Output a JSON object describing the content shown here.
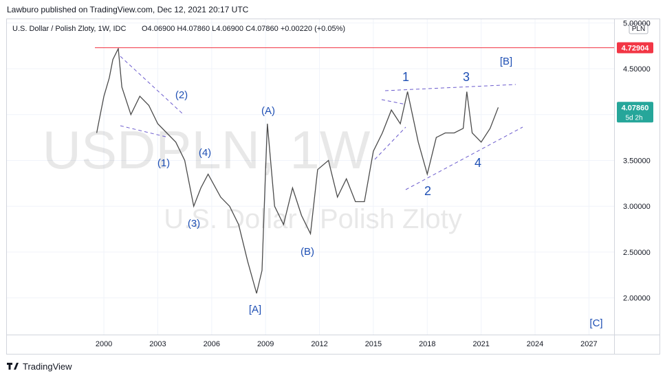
{
  "header": {
    "publisher": "Lawburo published on TradingView.com, Dec 12, 2021 20:17 UTC",
    "footer": "TradingView"
  },
  "chart_data": {
    "type": "line",
    "title": "U.S. Dollar / Polish Zloty, 1W, IDC",
    "ohlc": "O4.06900 H4.07860 L4.06900 C4.07860 +0.00220 (+0.05%)",
    "watermark": "USDPLN, 1W",
    "watermark_sub": "U.S. Dollar / Polish Zloty",
    "currency": "PLN",
    "x": [
      1999.6,
      1999.8,
      2000.0,
      2000.3,
      2000.5,
      2000.8,
      2001.0,
      2001.5,
      2002.0,
      2002.5,
      2003.0,
      2003.5,
      2004.0,
      2004.5,
      2005.0,
      2005.4,
      2005.8,
      2006.5,
      2007.0,
      2007.5,
      2008.0,
      2008.5,
      2008.8,
      2009.0,
      2009.1,
      2009.5,
      2010.0,
      2010.5,
      2011.0,
      2011.5,
      2011.9,
      2012.5,
      2013.0,
      2013.5,
      2014.0,
      2014.5,
      2015.0,
      2015.5,
      2016.0,
      2016.5,
      2016.9,
      2017.5,
      2018.0,
      2018.5,
      2019.0,
      2019.5,
      2020.0,
      2020.2,
      2020.5,
      2021.0,
      2021.5,
      2021.95
    ],
    "series": [
      {
        "name": "USDPLN",
        "color": "#4a4a4a",
        "values": [
          3.8,
          4.0,
          4.2,
          4.4,
          4.6,
          4.72,
          4.3,
          4.0,
          4.2,
          4.1,
          3.9,
          3.8,
          3.7,
          3.5,
          3.0,
          3.2,
          3.35,
          3.1,
          3.0,
          2.8,
          2.4,
          2.05,
          2.3,
          3.4,
          3.9,
          3.0,
          2.8,
          3.2,
          2.9,
          2.7,
          3.4,
          3.5,
          3.1,
          3.3,
          3.05,
          3.05,
          3.6,
          3.8,
          4.05,
          3.9,
          4.25,
          3.7,
          3.35,
          3.75,
          3.8,
          3.8,
          3.85,
          4.25,
          3.8,
          3.7,
          3.85,
          4.0786
        ]
      }
    ],
    "xlim": [
      1994.6,
      2028.4
    ],
    "xticks": [
      2000,
      2003,
      2006,
      2009,
      2012,
      2015,
      2018,
      2021,
      2024,
      2027
    ],
    "ylim": [
      1.6,
      5.04
    ],
    "yticks": [
      {
        "value": 2,
        "label": "2.00000"
      },
      {
        "value": 2.5,
        "label": "2.50000"
      },
      {
        "value": 3,
        "label": "3.00000"
      },
      {
        "value": 3.5,
        "label": "3.50000"
      },
      {
        "value": 4,
        "label": "4.00000"
      },
      {
        "value": 4.5,
        "label": "4.50000"
      },
      {
        "value": 5,
        "label": "5.00000"
      }
    ],
    "price_line": 4.72904,
    "last_price": {
      "value": 4.0786,
      "label": "4.07860"
    },
    "countdown": "5d 2h",
    "grid": true,
    "annotations": [
      "[B]",
      "1",
      "3",
      "(2)",
      "(A)",
      "(1)",
      "(4)",
      "(3)",
      "(B)",
      "[A]",
      "2",
      "4",
      "[C]"
    ]
  }
}
